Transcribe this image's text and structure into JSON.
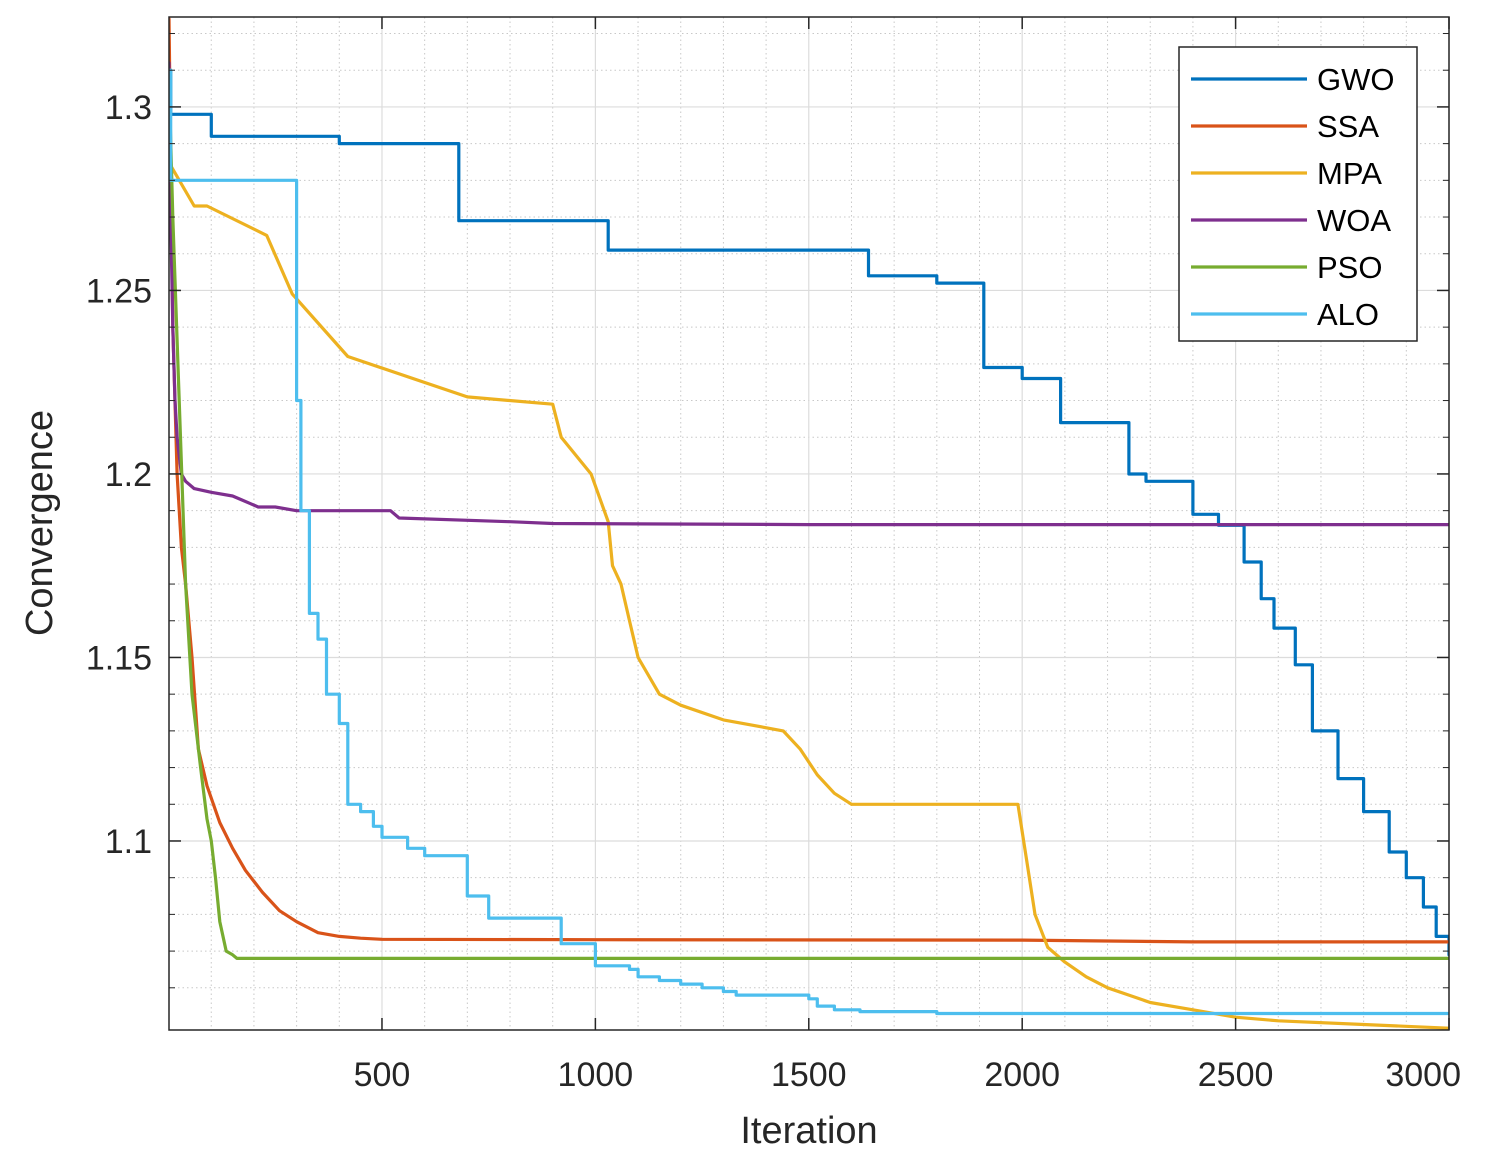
{
  "chart_data": {
    "type": "line",
    "title": "",
    "xlabel": "Iteration",
    "ylabel": "Convergence",
    "xlim": [
      1,
      3000
    ],
    "ylim": [
      1.0485,
      1.3245
    ],
    "xticks": [
      500,
      1000,
      1500,
      2000,
      2500,
      3000
    ],
    "yticks": [
      1.1,
      1.15,
      1.2,
      1.25,
      1.3
    ],
    "xtick_labels": [
      "500",
      "1000",
      "1500",
      "2000",
      "2500",
      "3000"
    ],
    "ytick_labels": [
      "1.1",
      "1.15",
      "1.2",
      "1.25",
      "1.3"
    ],
    "grid": true,
    "minor_grid": true,
    "legend_position": "top-right",
    "series": [
      {
        "name": "GWO",
        "color": "#0072BD",
        "step": true,
        "x": [
          1,
          5,
          100,
          400,
          680,
          1030,
          1640,
          1800,
          1910,
          2000,
          2090,
          2130,
          2250,
          2290,
          2300,
          2400,
          2460,
          2500,
          2520,
          2560,
          2590,
          2640,
          2680,
          2740,
          2800,
          2860,
          2900,
          2940,
          2970,
          3000
        ],
        "y": [
          1.31,
          1.298,
          1.292,
          1.29,
          1.269,
          1.261,
          1.254,
          1.252,
          1.229,
          1.226,
          1.214,
          1.214,
          1.2,
          1.198,
          1.198,
          1.189,
          1.186,
          1.186,
          1.176,
          1.166,
          1.158,
          1.148,
          1.13,
          1.117,
          1.108,
          1.097,
          1.09,
          1.082,
          1.074,
          1.069
        ]
      },
      {
        "name": "SSA",
        "color": "#D95319",
        "step": false,
        "x": [
          1,
          10,
          20,
          30,
          40,
          55,
          70,
          90,
          120,
          150,
          180,
          220,
          260,
          300,
          350,
          400,
          450,
          500,
          1000,
          2000,
          2400,
          3000
        ],
        "y": [
          1.324,
          1.24,
          1.2,
          1.18,
          1.17,
          1.15,
          1.125,
          1.115,
          1.105,
          1.098,
          1.092,
          1.086,
          1.081,
          1.078,
          1.075,
          1.074,
          1.0735,
          1.0732,
          1.0731,
          1.073,
          1.0725,
          1.0725
        ]
      },
      {
        "name": "MPA",
        "color": "#EDB120",
        "step": false,
        "x": [
          1,
          5,
          60,
          90,
          230,
          290,
          420,
          700,
          900,
          920,
          990,
          1030,
          1040,
          1060,
          1080,
          1100,
          1150,
          1200,
          1300,
          1440,
          1480,
          1520,
          1560,
          1600,
          1700,
          1990,
          2010,
          2030,
          2060,
          2100,
          2150,
          2200,
          2250,
          2300,
          2400,
          2500,
          2600,
          2800,
          3000
        ],
        "y": [
          1.31,
          1.284,
          1.273,
          1.273,
          1.265,
          1.249,
          1.232,
          1.221,
          1.219,
          1.21,
          1.2,
          1.187,
          1.175,
          1.17,
          1.16,
          1.15,
          1.14,
          1.137,
          1.133,
          1.13,
          1.125,
          1.118,
          1.113,
          1.11,
          1.11,
          1.11,
          1.095,
          1.08,
          1.071,
          1.067,
          1.063,
          1.06,
          1.058,
          1.056,
          1.054,
          1.052,
          1.051,
          1.05,
          1.049
        ]
      },
      {
        "name": "WOA",
        "color": "#7E2F8E",
        "step": false,
        "x": [
          1,
          5,
          10,
          15,
          20,
          25,
          30,
          40,
          60,
          100,
          150,
          170,
          190,
          210,
          250,
          300,
          520,
          540,
          800,
          900,
          1500,
          3000
        ],
        "y": [
          1.312,
          1.27,
          1.24,
          1.22,
          1.21,
          1.205,
          1.2,
          1.198,
          1.196,
          1.195,
          1.194,
          1.193,
          1.192,
          1.191,
          1.191,
          1.19,
          1.19,
          1.188,
          1.187,
          1.1865,
          1.1862,
          1.1862
        ]
      },
      {
        "name": "PSO",
        "color": "#77AC30",
        "step": false,
        "x": [
          1,
          10,
          25,
          40,
          55,
          75,
          90,
          100,
          110,
          120,
          135,
          150,
          160,
          180,
          3000
        ],
        "y": [
          1.308,
          1.27,
          1.22,
          1.17,
          1.14,
          1.12,
          1.106,
          1.1,
          1.09,
          1.078,
          1.07,
          1.069,
          1.068,
          1.068,
          1.068
        ]
      },
      {
        "name": "ALO",
        "color": "#4DBEEE",
        "step": true,
        "x": [
          1,
          5,
          295,
          300,
          310,
          330,
          350,
          370,
          400,
          420,
          450,
          480,
          500,
          560,
          600,
          700,
          750,
          820,
          920,
          1000,
          1080,
          1100,
          1150,
          1200,
          1250,
          1300,
          1330,
          1460,
          1500,
          1520,
          1560,
          1620,
          1800,
          3000
        ],
        "y": [
          1.31,
          1.28,
          1.28,
          1.22,
          1.19,
          1.162,
          1.155,
          1.14,
          1.132,
          1.11,
          1.108,
          1.104,
          1.101,
          1.098,
          1.096,
          1.085,
          1.079,
          1.079,
          1.072,
          1.066,
          1.065,
          1.063,
          1.062,
          1.061,
          1.06,
          1.059,
          1.058,
          1.058,
          1.057,
          1.055,
          1.054,
          1.0535,
          1.053,
          1.053
        ]
      }
    ]
  }
}
